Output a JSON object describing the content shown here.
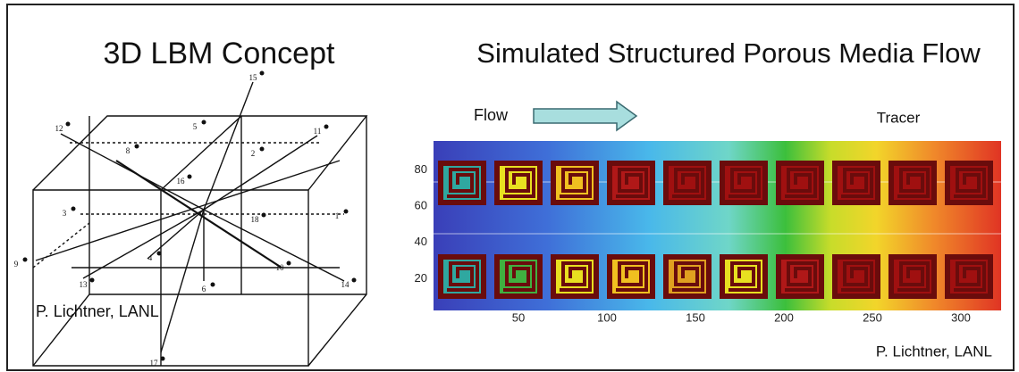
{
  "left": {
    "title": "3D LBM Concept",
    "credit": "P. Lichtner, LANL",
    "node_labels": [
      "15",
      "12",
      "5",
      "11",
      "8",
      "2",
      "16",
      "3",
      "18",
      "1",
      "9",
      "4",
      "10",
      "13",
      "6",
      "14",
      "17"
    ]
  },
  "right": {
    "title": "Simulated Structured Porous Media Flow",
    "flow_label": "Flow",
    "tracer_label": "Tracer",
    "y_ticks": [
      80,
      60,
      40,
      20
    ],
    "x_ticks": [
      50,
      100,
      150,
      200,
      250,
      300
    ],
    "credit": "P. Lichtner, LANL"
  }
}
